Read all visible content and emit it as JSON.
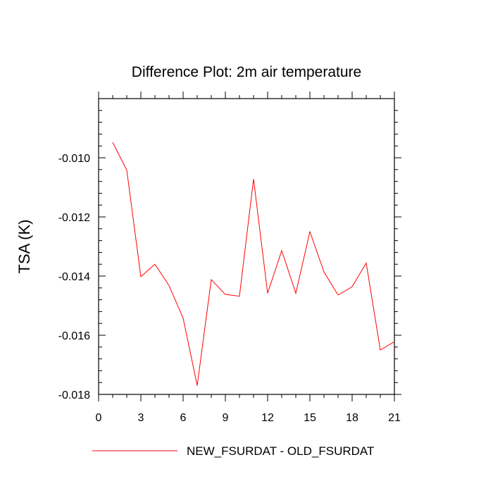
{
  "chart_data": {
    "type": "line",
    "title": "Difference Plot: 2m air temperature",
    "xlabel": "",
    "ylabel": "TSA  (K)",
    "xlim": [
      0,
      21
    ],
    "ylim": [
      -0.018,
      -0.008
    ],
    "x_ticks": [
      0,
      3,
      6,
      9,
      12,
      15,
      18,
      21
    ],
    "x_tick_labels": [
      "0",
      "3",
      "6",
      "9",
      "12",
      "15",
      "18",
      "21"
    ],
    "y_ticks": [
      -0.018,
      -0.016,
      -0.014,
      -0.012,
      -0.01
    ],
    "y_tick_labels": [
      "-0.018",
      "-0.016",
      "-0.014",
      "-0.012",
      "-0.010"
    ],
    "grid": false,
    "legend_position": "bottom",
    "series": [
      {
        "name": "NEW_FSURDAT - OLD_FSURDAT",
        "color": "#ff0000",
        "x": [
          1,
          2,
          3,
          4,
          5,
          6,
          7,
          8,
          9,
          10,
          11,
          12,
          13,
          14,
          15,
          16,
          17,
          18,
          19,
          20,
          21
        ],
        "y": [
          -0.00948,
          -0.01042,
          -0.01402,
          -0.0136,
          -0.01432,
          -0.01542,
          -0.0177,
          -0.01412,
          -0.01462,
          -0.01468,
          -0.01072,
          -0.01458,
          -0.01314,
          -0.01458,
          -0.0125,
          -0.01386,
          -0.01464,
          -0.01436,
          -0.01356,
          -0.0165,
          -0.01622
        ]
      }
    ]
  }
}
